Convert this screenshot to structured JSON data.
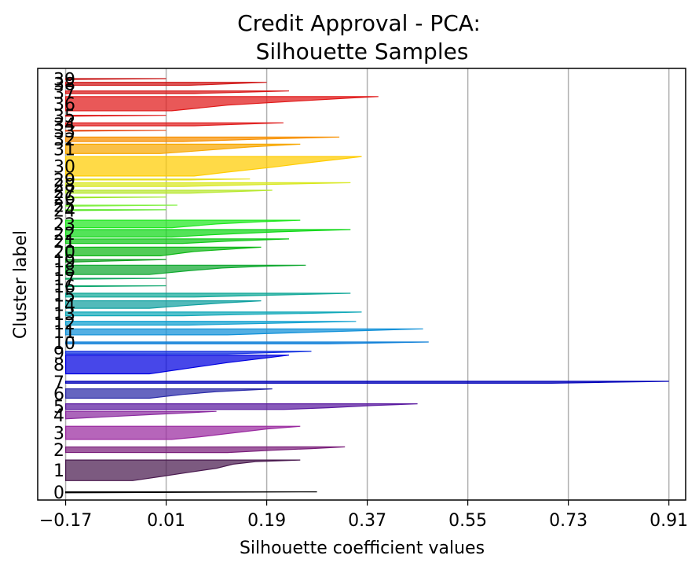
{
  "chart_data": {
    "type": "silhouette",
    "title_lines": [
      "Credit Approval - PCA:",
      "Silhouette Samples"
    ],
    "xlabel": "Silhouette coefficient values",
    "ylabel": "Cluster label",
    "xlim": [
      -0.22,
      0.94
    ],
    "x_ticks": [
      -0.17,
      0.01,
      0.19,
      0.37,
      0.55,
      0.73,
      0.91
    ],
    "x_tick_labels": [
      "−0.17",
      "0.01",
      "0.19",
      "0.37",
      "0.55",
      "0.73",
      "0.91"
    ],
    "grid": "vertical",
    "clusters": [
      {
        "label": "0",
        "y_top": 0.975,
        "y_bottom": 0.975,
        "max": 0.28,
        "shape": [
          [
            0,
            0.28
          ]
        ],
        "color": "#000000"
      },
      {
        "label": "1",
        "y_top": 0.89,
        "y_bottom": 0.945,
        "max": 0.25,
        "shape": [
          [
            0,
            0.25
          ],
          [
            0.08,
            0.17
          ],
          [
            0.2,
            0.13
          ],
          [
            0.4,
            0.1
          ],
          [
            0.6,
            0.05
          ],
          [
            0.8,
            0.0
          ],
          [
            1,
            -0.05
          ]
        ],
        "color": "#4a1a4f"
      },
      {
        "label": "2",
        "y_top": 0.855,
        "y_bottom": 0.87,
        "max": 0.33,
        "shape": [
          [
            0,
            0.33
          ],
          [
            0.3,
            0.27
          ],
          [
            0.6,
            0.2
          ],
          [
            1,
            0.12
          ]
        ],
        "color": "#7a1f7a"
      },
      {
        "label": "3",
        "y_top": 0.8,
        "y_bottom": 0.835,
        "max": 0.25,
        "shape": [
          [
            0,
            0.25
          ],
          [
            0.2,
            0.19
          ],
          [
            0.5,
            0.13
          ],
          [
            0.8,
            0.07
          ],
          [
            1,
            0.02
          ]
        ],
        "color": "#9a2aa0"
      },
      {
        "label": "4",
        "y_top": 0.76,
        "y_bottom": 0.78,
        "max": 0.1,
        "shape": [
          [
            0,
            0.1
          ]
        ],
        "color": "#8a2aa0"
      },
      {
        "label": "5",
        "y_top": 0.74,
        "y_bottom": 0.755,
        "max": 0.46,
        "shape": [
          [
            0,
            0.46
          ],
          [
            0.3,
            0.38
          ],
          [
            0.7,
            0.3
          ],
          [
            1,
            0.22
          ]
        ],
        "color": "#5a1aa0"
      },
      {
        "label": "6",
        "y_top": 0.7,
        "y_bottom": 0.725,
        "max": 0.2,
        "shape": [
          [
            0,
            0.2
          ],
          [
            0.3,
            0.1
          ],
          [
            0.6,
            0.04
          ],
          [
            1,
            -0.02
          ]
        ],
        "color": "#2a2aa8"
      },
      {
        "label": "7",
        "y_top": 0.68,
        "y_bottom": 0.685,
        "max": 0.91,
        "shape": [
          [
            0,
            0.91
          ],
          [
            0.5,
            0.8
          ],
          [
            1,
            0.7
          ]
        ],
        "color": "#0000b8"
      },
      {
        "label": "8",
        "y_top": 0.61,
        "y_bottom": 0.66,
        "max": 0.23,
        "shape": [
          [
            0,
            0.23
          ],
          [
            0.15,
            0.19
          ],
          [
            0.4,
            0.12
          ],
          [
            0.7,
            0.05
          ],
          [
            1,
            -0.02
          ]
        ],
        "color": "#0000e0"
      },
      {
        "label": "9",
        "y_top": 0.6,
        "y_bottom": 0.607,
        "max": 0.27,
        "shape": [
          [
            0,
            0.27
          ],
          [
            1,
            0.12
          ]
        ],
        "color": "#1030e0"
      },
      {
        "label": "10",
        "y_top": 0.575,
        "y_bottom": 0.58,
        "max": 0.48,
        "shape": [
          [
            0,
            0.48
          ],
          [
            1,
            0.3
          ]
        ],
        "color": "#1080d8"
      },
      {
        "label": "11",
        "y_top": 0.54,
        "y_bottom": 0.556,
        "max": 0.47,
        "shape": [
          [
            0,
            0.47
          ],
          [
            0.3,
            0.36
          ],
          [
            0.7,
            0.22
          ],
          [
            1,
            0.12
          ]
        ],
        "color": "#1090d8"
      },
      {
        "label": "12",
        "y_top": 0.52,
        "y_bottom": 0.53,
        "max": 0.35,
        "shape": [
          [
            0,
            0.35
          ],
          [
            0.5,
            0.2
          ],
          [
            1,
            0.05
          ]
        ],
        "color": "#10a0d0"
      },
      {
        "label": "13",
        "y_top": 0.495,
        "y_bottom": 0.505,
        "max": 0.36,
        "shape": [
          [
            0,
            0.36
          ],
          [
            0.3,
            0.28
          ],
          [
            0.7,
            0.14
          ],
          [
            1,
            0.04
          ]
        ],
        "color": "#10a8b8"
      },
      {
        "label": "14",
        "y_top": 0.465,
        "y_bottom": 0.485,
        "max": 0.18,
        "shape": [
          [
            0,
            0.18
          ],
          [
            0.3,
            0.11
          ],
          [
            0.6,
            0.05
          ],
          [
            1,
            -0.02
          ]
        ],
        "color": "#10a0a0"
      },
      {
        "label": "15",
        "y_top": 0.445,
        "y_bottom": 0.455,
        "max": 0.34,
        "shape": [
          [
            0,
            0.34
          ],
          [
            0.4,
            0.23
          ],
          [
            1,
            0.06
          ]
        ],
        "color": "#10a898"
      },
      {
        "label": "16",
        "y_top": 0.425,
        "y_bottom": 0.425,
        "max": 0.01,
        "shape": [
          [
            0,
            0.01
          ]
        ],
        "color": "#10a870"
      },
      {
        "label": "17",
        "y_top": 0.405,
        "y_bottom": 0.405,
        "max": 0.01,
        "shape": [
          [
            0,
            0.01
          ]
        ],
        "color": "#10a860"
      },
      {
        "label": "18",
        "y_top": 0.37,
        "y_bottom": 0.395,
        "max": 0.26,
        "shape": [
          [
            0,
            0.26
          ],
          [
            0.1,
            0.19
          ],
          [
            0.3,
            0.11
          ],
          [
            0.6,
            0.05
          ],
          [
            1,
            -0.02
          ]
        ],
        "color": "#10a830"
      },
      {
        "label": "19",
        "y_top": 0.355,
        "y_bottom": 0.362,
        "max": 0.01,
        "shape": [
          [
            0,
            0.01
          ]
        ],
        "color": "#10a020"
      },
      {
        "label": "20",
        "y_top": 0.322,
        "y_bottom": 0.345,
        "max": 0.18,
        "shape": [
          [
            0,
            0.18
          ],
          [
            0.2,
            0.13
          ],
          [
            0.5,
            0.06
          ],
          [
            1,
            0.0
          ]
        ],
        "color": "#10b818"
      },
      {
        "label": "21",
        "y_top": 0.3,
        "y_bottom": 0.312,
        "max": 0.23,
        "shape": [
          [
            0,
            0.23
          ],
          [
            0.5,
            0.12
          ],
          [
            1,
            0.04
          ]
        ],
        "color": "#10c818"
      },
      {
        "label": "22",
        "y_top": 0.275,
        "y_bottom": 0.295,
        "max": 0.34,
        "shape": [
          [
            0,
            0.34
          ],
          [
            0.3,
            0.21
          ],
          [
            0.7,
            0.09
          ],
          [
            1,
            0.02
          ]
        ],
        "color": "#10d818"
      },
      {
        "label": "23",
        "y_top": 0.25,
        "y_bottom": 0.27,
        "max": 0.25,
        "shape": [
          [
            0,
            0.25
          ],
          [
            0.2,
            0.18
          ],
          [
            0.5,
            0.1
          ],
          [
            1,
            0.02
          ]
        ],
        "color": "#20e820"
      },
      {
        "label": "24",
        "y_top": 0.222,
        "y_bottom": 0.222,
        "max": 0.01,
        "shape": [
          [
            0,
            0.01
          ]
        ],
        "color": "#60e830"
      },
      {
        "label": "25",
        "y_top": 0.21,
        "y_bottom": 0.21,
        "max": 0.03,
        "shape": [
          [
            0,
            0.03
          ]
        ],
        "color": "#80f040"
      },
      {
        "label": "26",
        "y_top": 0.188,
        "y_bottom": 0.188,
        "max": 0.01,
        "shape": [
          [
            0,
            0.01
          ]
        ],
        "color": "#a0e830"
      },
      {
        "label": "27",
        "y_top": 0.17,
        "y_bottom": 0.178,
        "max": 0.2,
        "shape": [
          [
            0,
            0.2
          ],
          [
            1,
            0.05
          ]
        ],
        "color": "#b8e830"
      },
      {
        "label": "28",
        "y_top": 0.15,
        "y_bottom": 0.16,
        "max": 0.34,
        "shape": [
          [
            0,
            0.34
          ],
          [
            0.5,
            0.18
          ],
          [
            1,
            0.04
          ]
        ],
        "color": "#d8e820"
      },
      {
        "label": "29",
        "y_top": 0.14,
        "y_bottom": 0.142,
        "max": 0.16,
        "shape": [
          [
            0,
            0.16
          ],
          [
            1,
            0.05
          ]
        ],
        "color": "#e8e020"
      },
      {
        "label": "30",
        "y_top": 0.08,
        "y_bottom": 0.132,
        "max": 0.36,
        "shape": [
          [
            0,
            0.36
          ],
          [
            0.1,
            0.33
          ],
          [
            0.3,
            0.27
          ],
          [
            0.55,
            0.2
          ],
          [
            0.8,
            0.12
          ],
          [
            1,
            0.06
          ]
        ],
        "color": "#ffcc00"
      },
      {
        "label": "31",
        "y_top": 0.047,
        "y_bottom": 0.072,
        "max": 0.25,
        "shape": [
          [
            0,
            0.25
          ],
          [
            0.3,
            0.16
          ],
          [
            0.7,
            0.07
          ],
          [
            1,
            0.0
          ]
        ],
        "color": "#f8a800"
      },
      {
        "label": "32",
        "y_top": 0.028,
        "y_bottom": 0.04,
        "max": 0.32,
        "shape": [
          [
            0,
            0.32
          ],
          [
            0.5,
            0.17
          ],
          [
            1,
            0.04
          ]
        ],
        "color": "#f89000"
      },
      {
        "label": "33",
        "y_top": 0.01,
        "y_bottom": 0.01,
        "max": 0.01,
        "shape": [
          [
            0,
            0.01
          ]
        ],
        "color": "#e85020"
      },
      {
        "label": "34",
        "y_top": -0.01,
        "y_bottom": -0.002,
        "max": 0.22,
        "shape": [
          [
            0,
            0.22
          ],
          [
            1,
            0.06
          ]
        ],
        "color": "#e02020"
      },
      {
        "label": "35",
        "y_top": -0.03,
        "y_bottom": -0.03,
        "max": 0.01,
        "shape": [
          [
            0,
            0.01
          ]
        ],
        "color": "#e02020"
      },
      {
        "label": "36",
        "y_top": -0.08,
        "y_bottom": -0.042,
        "max": 0.39,
        "shape": [
          [
            0,
            0.39
          ],
          [
            0.1,
            0.34
          ],
          [
            0.3,
            0.25
          ],
          [
            0.6,
            0.12
          ],
          [
            1,
            0.02
          ]
        ],
        "color": "#e01818"
      },
      {
        "label": "37",
        "y_top": -0.095,
        "y_bottom": -0.088,
        "max": 0.23,
        "shape": [
          [
            0,
            0.23
          ],
          [
            1,
            0.06
          ]
        ],
        "color": "#d81818"
      },
      {
        "label": "38",
        "y_top": -0.118,
        "y_bottom": -0.11,
        "max": 0.19,
        "shape": [
          [
            0,
            0.19
          ],
          [
            1,
            0.05
          ]
        ],
        "color": "#d01818"
      },
      {
        "label": "39",
        "y_top": -0.128,
        "y_bottom": -0.128,
        "max": 0.01,
        "shape": [
          [
            0,
            0.01
          ]
        ],
        "color": "#c81818"
      }
    ]
  }
}
